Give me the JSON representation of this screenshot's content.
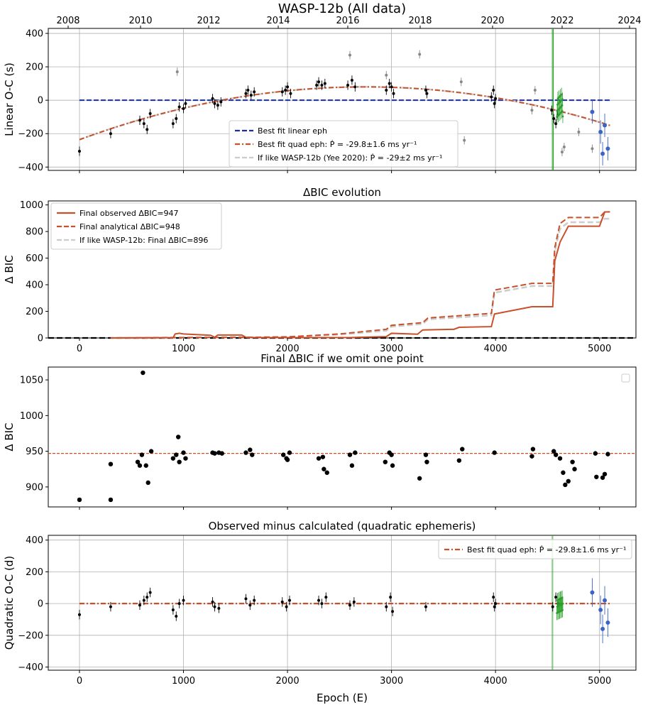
{
  "chart_data": [
    {
      "type": "scatter",
      "title": "WASP-12b (All data)",
      "ylabel": "Linear O-C (s)",
      "xlabel_top_ticks": [
        "2008",
        "2010",
        "2012",
        "2014",
        "2016",
        "2018",
        "2020",
        "2022",
        "2024"
      ],
      "xlim": [
        -300,
        5350
      ],
      "ylim": [
        -420,
        430
      ],
      "yticks": [
        -400,
        -200,
        0,
        200,
        400
      ],
      "grid": true,
      "legend_position": "center-right",
      "legend": [
        {
          "label": "Best fit linear eph",
          "color": "#1a2f9e",
          "style": "dashed"
        },
        {
          "label": "Best fit quad eph: Ṗ = -29.8±1.6 ms yr⁻¹",
          "color": "#c8502a",
          "style": "dashdot"
        },
        {
          "label": "If like WASP-12b (Yee 2020): Ṗ = -29±2 ms yr⁻¹",
          "color": "#cccccc",
          "style": "dashed"
        }
      ],
      "series": [
        {
          "name": "Best fit linear eph",
          "x": [
            0,
            5100
          ],
          "y": [
            0,
            0
          ]
        },
        {
          "name": "Best fit quad eph",
          "x": [
            0,
            500,
            1000,
            1500,
            2000,
            2500,
            3000,
            3500,
            4000,
            4500,
            5000
          ],
          "y": [
            -236,
            -130,
            -48,
            14,
            58,
            80,
            80,
            58,
            14,
            -48,
            -130
          ]
        }
      ],
      "points_black": [
        [
          0,
          -305
        ],
        [
          300,
          -200
        ],
        [
          580,
          -120
        ],
        [
          620,
          -140
        ],
        [
          650,
          -175
        ],
        [
          680,
          -80
        ],
        [
          900,
          -140
        ],
        [
          930,
          -110
        ],
        [
          960,
          -40
        ],
        [
          1000,
          -50
        ],
        [
          1020,
          -20
        ],
        [
          1280,
          10
        ],
        [
          1300,
          -20
        ],
        [
          1330,
          -30
        ],
        [
          1360,
          -10
        ],
        [
          1600,
          40
        ],
        [
          1620,
          60
        ],
        [
          1650,
          30
        ],
        [
          1680,
          50
        ],
        [
          1950,
          50
        ],
        [
          1980,
          60
        ],
        [
          2000,
          80
        ],
        [
          2030,
          40
        ],
        [
          2280,
          90
        ],
        [
          2300,
          110
        ],
        [
          2330,
          90
        ],
        [
          2360,
          100
        ],
        [
          2580,
          90
        ],
        [
          2620,
          120
        ],
        [
          2650,
          80
        ],
        [
          2950,
          60
        ],
        [
          2980,
          100
        ],
        [
          3000,
          80
        ],
        [
          3020,
          40
        ],
        [
          3330,
          60
        ],
        [
          3340,
          40
        ],
        [
          3960,
          20
        ],
        [
          3980,
          60
        ],
        [
          3990,
          -20
        ],
        [
          4000,
          10
        ],
        [
          4540,
          -60
        ],
        [
          4560,
          -110
        ],
        [
          4580,
          -140
        ],
        [
          4600,
          -90
        ]
      ],
      "points_gray": [
        [
          940,
          170
        ],
        [
          2600,
          270
        ],
        [
          2950,
          150
        ],
        [
          3270,
          275
        ],
        [
          3670,
          110
        ],
        [
          3700,
          -240
        ],
        [
          4350,
          -60
        ],
        [
          4380,
          60
        ],
        [
          4640,
          -310
        ],
        [
          4660,
          -280
        ],
        [
          4800,
          -190
        ],
        [
          4930,
          -290
        ]
      ],
      "points_blue": [
        [
          4930,
          -70
        ],
        [
          5010,
          -190
        ],
        [
          5030,
          -320
        ],
        [
          5050,
          -150
        ],
        [
          5080,
          -290
        ]
      ],
      "points_green_x_range": [
        4600,
        4650
      ]
    },
    {
      "type": "line",
      "title": "ΔBIC evolution",
      "ylabel": "Δ BIC",
      "xlim": [
        -300,
        5350
      ],
      "ylim": [
        0,
        1030
      ],
      "yticks": [
        0,
        200,
        400,
        600,
        800,
        1000
      ],
      "xticks": [
        0,
        1000,
        2000,
        3000,
        4000,
        5000
      ],
      "legend_position": "top-left",
      "legend": [
        {
          "label": "Final observed ΔBIC=947",
          "color": "#c8502a",
          "style": "solid"
        },
        {
          "label": "Final analytical ΔBIC=948",
          "color": "#c8502a",
          "style": "dashed"
        },
        {
          "label": "If like WASP-12b: Final ΔBIC=896",
          "color": "#cccccc",
          "style": "dashed"
        }
      ],
      "series": [
        {
          "name": "Final observed ΔBIC=947",
          "x": [
            300,
            900,
            920,
            960,
            1000,
            1260,
            1300,
            1330,
            1560,
            1600,
            1700,
            2000,
            2300,
            2600,
            2950,
            3000,
            3250,
            3300,
            3600,
            3650,
            3960,
            3990,
            4350,
            4550,
            4570,
            4620,
            4700,
            5000,
            5050,
            5100
          ],
          "y": [
            0,
            2,
            30,
            35,
            30,
            20,
            5,
            22,
            22,
            5,
            3,
            3,
            3,
            3,
            10,
            35,
            28,
            60,
            65,
            80,
            85,
            180,
            235,
            235,
            580,
            720,
            840,
            840,
            947,
            947
          ]
        },
        {
          "name": "Final analytical ΔBIC=948",
          "x": [
            300,
            1000,
            1700,
            2000,
            2500,
            2950,
            3000,
            3300,
            3350,
            3960,
            3990,
            4350,
            4550,
            4570,
            4620,
            4700,
            5000,
            5050,
            5100
          ],
          "y": [
            0,
            3,
            5,
            8,
            30,
            65,
            95,
            115,
            150,
            185,
            360,
            410,
            410,
            680,
            860,
            905,
            905,
            948,
            948
          ]
        },
        {
          "name": "If like WASP-12b: Final ΔBIC=896",
          "x": [
            300,
            1000,
            1700,
            2000,
            2500,
            2950,
            3000,
            3300,
            3350,
            3960,
            3990,
            4350,
            4550,
            4570,
            4620,
            4700,
            5000,
            5050,
            5100
          ],
          "y": [
            0,
            3,
            5,
            8,
            25,
            55,
            85,
            105,
            140,
            170,
            340,
            390,
            390,
            650,
            820,
            870,
            870,
            896,
            896
          ]
        },
        {
          "name": "zero",
          "x": [
            -300,
            5350
          ],
          "y": [
            0,
            0
          ]
        }
      ]
    },
    {
      "type": "scatter",
      "title": "Final ΔBIC if we omit one point",
      "ylabel": "Δ BIC",
      "xlim": [
        -300,
        5350
      ],
      "ylim": [
        872,
        1068
      ],
      "yticks": [
        900,
        950,
        1000,
        1050
      ],
      "reference_line": 947,
      "points": [
        [
          0,
          882
        ],
        [
          300,
          932
        ],
        [
          300,
          882
        ],
        [
          560,
          935
        ],
        [
          580,
          930
        ],
        [
          600,
          945
        ],
        [
          610,
          1060
        ],
        [
          640,
          930
        ],
        [
          660,
          906
        ],
        [
          690,
          950
        ],
        [
          900,
          940
        ],
        [
          930,
          945
        ],
        [
          950,
          970
        ],
        [
          960,
          935
        ],
        [
          1000,
          948
        ],
        [
          1020,
          940
        ],
        [
          1280,
          948
        ],
        [
          1300,
          947
        ],
        [
          1340,
          948
        ],
        [
          1370,
          947
        ],
        [
          1600,
          948
        ],
        [
          1640,
          952
        ],
        [
          1660,
          945
        ],
        [
          1960,
          945
        ],
        [
          1990,
          940
        ],
        [
          2000,
          938
        ],
        [
          2020,
          948
        ],
        [
          2300,
          940
        ],
        [
          2340,
          942
        ],
        [
          2350,
          925
        ],
        [
          2380,
          920
        ],
        [
          2600,
          945
        ],
        [
          2620,
          930
        ],
        [
          2650,
          948
        ],
        [
          2940,
          935
        ],
        [
          2980,
          948
        ],
        [
          3000,
          945
        ],
        [
          3010,
          930
        ],
        [
          3270,
          912
        ],
        [
          3330,
          945
        ],
        [
          3340,
          935
        ],
        [
          3650,
          937
        ],
        [
          3680,
          953
        ],
        [
          3990,
          948
        ],
        [
          4350,
          943
        ],
        [
          4360,
          953
        ],
        [
          4560,
          950
        ],
        [
          4580,
          945
        ],
        [
          4620,
          940
        ],
        [
          4650,
          920
        ],
        [
          4670,
          903
        ],
        [
          4700,
          908
        ],
        [
          4740,
          935
        ],
        [
          4760,
          925
        ],
        [
          4960,
          947
        ],
        [
          4970,
          914
        ],
        [
          5030,
          913
        ],
        [
          5050,
          918
        ],
        [
          5080,
          946
        ]
      ]
    },
    {
      "type": "scatter",
      "title": "Observed minus calculated (quadratic ephemeris)",
      "ylabel": "Quadratic O-C (d)",
      "xlabel": "Epoch (E)",
      "xlim": [
        -300,
        5350
      ],
      "ylim": [
        -420,
        430
      ],
      "yticks": [
        -400,
        -200,
        0,
        200,
        400
      ],
      "xticks": [
        0,
        1000,
        2000,
        3000,
        4000,
        5000
      ],
      "legend_position": "top-right",
      "legend": [
        {
          "label": "Best fit quad eph: Ṗ = -29.8±1.6 ms yr⁻¹",
          "color": "#c8502a",
          "style": "dashdot"
        }
      ],
      "points_black": [
        [
          0,
          -70
        ],
        [
          300,
          -20
        ],
        [
          580,
          -10
        ],
        [
          620,
          20
        ],
        [
          650,
          40
        ],
        [
          680,
          70
        ],
        [
          900,
          -40
        ],
        [
          930,
          -80
        ],
        [
          960,
          0
        ],
        [
          1000,
          20
        ],
        [
          1280,
          10
        ],
        [
          1300,
          -20
        ],
        [
          1340,
          -30
        ],
        [
          1600,
          30
        ],
        [
          1640,
          -10
        ],
        [
          1680,
          20
        ],
        [
          1950,
          10
        ],
        [
          1990,
          -20
        ],
        [
          2020,
          20
        ],
        [
          2300,
          20
        ],
        [
          2330,
          0
        ],
        [
          2370,
          40
        ],
        [
          2600,
          -10
        ],
        [
          2640,
          10
        ],
        [
          2950,
          -20
        ],
        [
          2990,
          40
        ],
        [
          3010,
          -50
        ],
        [
          3330,
          -20
        ],
        [
          3980,
          40
        ],
        [
          3990,
          -20
        ],
        [
          4000,
          0
        ],
        [
          4550,
          -20
        ],
        [
          4580,
          40
        ],
        [
          4600,
          0
        ]
      ],
      "points_blue": [
        [
          4930,
          70
        ],
        [
          5010,
          -40
        ],
        [
          5030,
          -160
        ],
        [
          5050,
          20
        ],
        [
          5080,
          -120
        ]
      ]
    }
  ]
}
